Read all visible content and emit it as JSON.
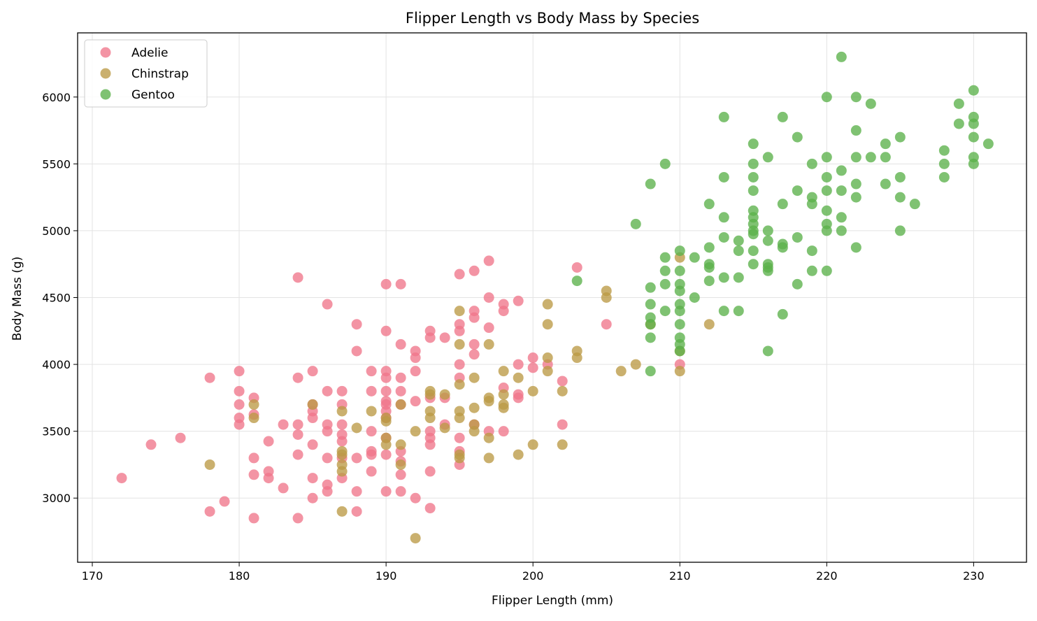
{
  "chart_data": {
    "type": "scatter",
    "title": "Flipper Length vs Body Mass by Species",
    "xlabel": "Flipper Length (mm)",
    "ylabel": "Body Mass (g)",
    "xlim": [
      169,
      233.6
    ],
    "ylim": [
      2520,
      6480
    ],
    "xticks": [
      170,
      180,
      190,
      200,
      210,
      220,
      230
    ],
    "yticks": [
      3000,
      3500,
      4000,
      4500,
      5000,
      5500,
      6000
    ],
    "grid": true,
    "legend_position": "top-left",
    "series": [
      {
        "name": "Adelie",
        "color": "#f0768a",
        "points": [
          [
            172,
            3150
          ],
          [
            174,
            3400
          ],
          [
            176,
            3450
          ],
          [
            178,
            3900
          ],
          [
            178,
            2900
          ],
          [
            179,
            2975
          ],
          [
            180,
            3950
          ],
          [
            180,
            3800
          ],
          [
            180,
            3700
          ],
          [
            180,
            3600
          ],
          [
            180,
            3550
          ],
          [
            181,
            3750
          ],
          [
            181,
            3625
          ],
          [
            181,
            3300
          ],
          [
            181,
            3175
          ],
          [
            181,
            2850
          ],
          [
            182,
            3425
          ],
          [
            182,
            3200
          ],
          [
            182,
            3150
          ],
          [
            183,
            3550
          ],
          [
            183,
            3075
          ],
          [
            184,
            4650
          ],
          [
            184,
            3900
          ],
          [
            184,
            3550
          ],
          [
            184,
            3475
          ],
          [
            184,
            3325
          ],
          [
            184,
            2850
          ],
          [
            185,
            3950
          ],
          [
            185,
            3700
          ],
          [
            185,
            3650
          ],
          [
            185,
            3600
          ],
          [
            185,
            3400
          ],
          [
            185,
            3150
          ],
          [
            185,
            3000
          ],
          [
            186,
            4450
          ],
          [
            186,
            3800
          ],
          [
            186,
            3550
          ],
          [
            186,
            3500
          ],
          [
            186,
            3300
          ],
          [
            186,
            3100
          ],
          [
            186,
            3050
          ],
          [
            187,
            3800
          ],
          [
            187,
            3700
          ],
          [
            187,
            3550
          ],
          [
            187,
            3475
          ],
          [
            187,
            3425
          ],
          [
            187,
            3300
          ],
          [
            187,
            3150
          ],
          [
            188,
            4300
          ],
          [
            188,
            4100
          ],
          [
            188,
            3300
          ],
          [
            188,
            3050
          ],
          [
            188,
            2900
          ],
          [
            189,
            3950
          ],
          [
            189,
            3800
          ],
          [
            189,
            3500
          ],
          [
            189,
            3350
          ],
          [
            189,
            3325
          ],
          [
            189,
            3200
          ],
          [
            190,
            4600
          ],
          [
            190,
            4250
          ],
          [
            190,
            3950
          ],
          [
            190,
            3900
          ],
          [
            190,
            3800
          ],
          [
            190,
            3725
          ],
          [
            190,
            3700
          ],
          [
            190,
            3650
          ],
          [
            190,
            3600
          ],
          [
            190,
            3450
          ],
          [
            190,
            3325
          ],
          [
            190,
            3050
          ],
          [
            191,
            4600
          ],
          [
            191,
            4150
          ],
          [
            191,
            3900
          ],
          [
            191,
            3800
          ],
          [
            191,
            3700
          ],
          [
            191,
            3350
          ],
          [
            191,
            3275
          ],
          [
            191,
            3175
          ],
          [
            191,
            3050
          ],
          [
            192,
            4100
          ],
          [
            192,
            4050
          ],
          [
            192,
            3950
          ],
          [
            192,
            3725
          ],
          [
            192,
            3000
          ],
          [
            193,
            4250
          ],
          [
            193,
            4200
          ],
          [
            193,
            3750
          ],
          [
            193,
            3500
          ],
          [
            193,
            3450
          ],
          [
            193,
            3400
          ],
          [
            193,
            3200
          ],
          [
            193,
            2925
          ],
          [
            194,
            4200
          ],
          [
            194,
            3750
          ],
          [
            194,
            3550
          ],
          [
            195,
            4675
          ],
          [
            195,
            4300
          ],
          [
            195,
            4250
          ],
          [
            195,
            4000
          ],
          [
            195,
            3900
          ],
          [
            195,
            3450
          ],
          [
            195,
            3350
          ],
          [
            195,
            3250
          ],
          [
            196,
            4700
          ],
          [
            196,
            4400
          ],
          [
            196,
            4350
          ],
          [
            196,
            4150
          ],
          [
            196,
            4075
          ],
          [
            196,
            3550
          ],
          [
            197,
            4775
          ],
          [
            197,
            4500
          ],
          [
            197,
            4275
          ],
          [
            197,
            3500
          ],
          [
            198,
            4450
          ],
          [
            198,
            4400
          ],
          [
            198,
            3825
          ],
          [
            198,
            3500
          ],
          [
            199,
            4475
          ],
          [
            199,
            4000
          ],
          [
            199,
            3775
          ],
          [
            199,
            3750
          ],
          [
            200,
            4050
          ],
          [
            200,
            3975
          ],
          [
            201,
            4000
          ],
          [
            202,
            3875
          ],
          [
            202,
            3550
          ],
          [
            203,
            4725
          ],
          [
            205,
            4300
          ],
          [
            210,
            4000
          ]
        ]
      },
      {
        "name": "Chinstrap",
        "color": "#bb9a45",
        "points": [
          [
            178,
            3250
          ],
          [
            181,
            3700
          ],
          [
            181,
            3600
          ],
          [
            185,
            3700
          ],
          [
            187,
            3650
          ],
          [
            187,
            3350
          ],
          [
            187,
            3325
          ],
          [
            187,
            3250
          ],
          [
            187,
            3200
          ],
          [
            187,
            2900
          ],
          [
            188,
            3525
          ],
          [
            189,
            3650
          ],
          [
            190,
            3600
          ],
          [
            190,
            3575
          ],
          [
            190,
            3450
          ],
          [
            190,
            3400
          ],
          [
            191,
            3700
          ],
          [
            191,
            3400
          ],
          [
            191,
            3250
          ],
          [
            192,
            3500
          ],
          [
            192,
            2700
          ],
          [
            193,
            3800
          ],
          [
            193,
            3775
          ],
          [
            193,
            3650
          ],
          [
            193,
            3600
          ],
          [
            194,
            3775
          ],
          [
            194,
            3525
          ],
          [
            195,
            4400
          ],
          [
            195,
            4150
          ],
          [
            195,
            3850
          ],
          [
            195,
            3650
          ],
          [
            195,
            3600
          ],
          [
            195,
            3325
          ],
          [
            195,
            3300
          ],
          [
            196,
            3900
          ],
          [
            196,
            3675
          ],
          [
            196,
            3550
          ],
          [
            196,
            3500
          ],
          [
            197,
            4150
          ],
          [
            197,
            3750
          ],
          [
            197,
            3725
          ],
          [
            197,
            3450
          ],
          [
            197,
            3300
          ],
          [
            198,
            3950
          ],
          [
            198,
            3775
          ],
          [
            198,
            3700
          ],
          [
            198,
            3675
          ],
          [
            199,
            3900
          ],
          [
            199,
            3325
          ],
          [
            200,
            3800
          ],
          [
            200,
            3400
          ],
          [
            201,
            4450
          ],
          [
            201,
            4300
          ],
          [
            201,
            4050
          ],
          [
            201,
            3950
          ],
          [
            202,
            3800
          ],
          [
            202,
            3400
          ],
          [
            203,
            4100
          ],
          [
            203,
            4050
          ],
          [
            205,
            4550
          ],
          [
            205,
            4500
          ],
          [
            206,
            3950
          ],
          [
            207,
            4000
          ],
          [
            208,
            4300
          ],
          [
            210,
            4800
          ],
          [
            210,
            4100
          ],
          [
            210,
            3950
          ],
          [
            212,
            4300
          ]
        ]
      },
      {
        "name": "Gentoo",
        "color": "#5bb14a",
        "points": [
          [
            203,
            4625
          ],
          [
            207,
            5050
          ],
          [
            208,
            5350
          ],
          [
            208,
            4575
          ],
          [
            208,
            4450
          ],
          [
            208,
            4350
          ],
          [
            208,
            4300
          ],
          [
            208,
            4200
          ],
          [
            208,
            3950
          ],
          [
            209,
            5500
          ],
          [
            209,
            4800
          ],
          [
            209,
            4700
          ],
          [
            209,
            4600
          ],
          [
            209,
            4400
          ],
          [
            210,
            4850
          ],
          [
            210,
            4700
          ],
          [
            210,
            4600
          ],
          [
            210,
            4550
          ],
          [
            210,
            4450
          ],
          [
            210,
            4400
          ],
          [
            210,
            4300
          ],
          [
            210,
            4200
          ],
          [
            210,
            4150
          ],
          [
            210,
            4100
          ],
          [
            211,
            4800
          ],
          [
            211,
            4500
          ],
          [
            212,
            5200
          ],
          [
            212,
            4875
          ],
          [
            212,
            4750
          ],
          [
            212,
            4725
          ],
          [
            212,
            4625
          ],
          [
            213,
            5850
          ],
          [
            213,
            5400
          ],
          [
            213,
            5100
          ],
          [
            213,
            4950
          ],
          [
            213,
            4650
          ],
          [
            213,
            4400
          ],
          [
            214,
            4925
          ],
          [
            214,
            4850
          ],
          [
            214,
            4650
          ],
          [
            214,
            4400
          ],
          [
            215,
            5650
          ],
          [
            215,
            5500
          ],
          [
            215,
            5400
          ],
          [
            215,
            5300
          ],
          [
            215,
            5150
          ],
          [
            215,
            5100
          ],
          [
            215,
            5050
          ],
          [
            215,
            5000
          ],
          [
            215,
            4975
          ],
          [
            215,
            4850
          ],
          [
            215,
            4750
          ],
          [
            216,
            5550
          ],
          [
            216,
            5000
          ],
          [
            216,
            4925
          ],
          [
            216,
            4750
          ],
          [
            216,
            4725
          ],
          [
            216,
            4700
          ],
          [
            216,
            4100
          ],
          [
            217,
            5850
          ],
          [
            217,
            5200
          ],
          [
            217,
            4900
          ],
          [
            217,
            4875
          ],
          [
            217,
            4375
          ],
          [
            218,
            5700
          ],
          [
            218,
            5300
          ],
          [
            218,
            4950
          ],
          [
            218,
            4600
          ],
          [
            219,
            5500
          ],
          [
            219,
            5250
          ],
          [
            219,
            5200
          ],
          [
            219,
            4850
          ],
          [
            219,
            4700
          ],
          [
            220,
            6000
          ],
          [
            220,
            5550
          ],
          [
            220,
            5400
          ],
          [
            220,
            5300
          ],
          [
            220,
            5150
          ],
          [
            220,
            5050
          ],
          [
            220,
            5000
          ],
          [
            220,
            4700
          ],
          [
            221,
            6300
          ],
          [
            221,
            5450
          ],
          [
            221,
            5300
          ],
          [
            221,
            5100
          ],
          [
            221,
            5000
          ],
          [
            222,
            6000
          ],
          [
            222,
            5750
          ],
          [
            222,
            5550
          ],
          [
            222,
            5350
          ],
          [
            222,
            5250
          ],
          [
            222,
            4875
          ],
          [
            223,
            5950
          ],
          [
            223,
            5550
          ],
          [
            224,
            5650
          ],
          [
            224,
            5550
          ],
          [
            224,
            5350
          ],
          [
            225,
            5700
          ],
          [
            225,
            5400
          ],
          [
            225,
            5250
          ],
          [
            225,
            5000
          ],
          [
            226,
            5200
          ],
          [
            228,
            5600
          ],
          [
            228,
            5500
          ],
          [
            228,
            5400
          ],
          [
            229,
            5950
          ],
          [
            229,
            5800
          ],
          [
            230,
            6050
          ],
          [
            230,
            5850
          ],
          [
            230,
            5800
          ],
          [
            230,
            5700
          ],
          [
            230,
            5550
          ],
          [
            230,
            5500
          ],
          [
            231,
            5650
          ]
        ]
      }
    ]
  }
}
